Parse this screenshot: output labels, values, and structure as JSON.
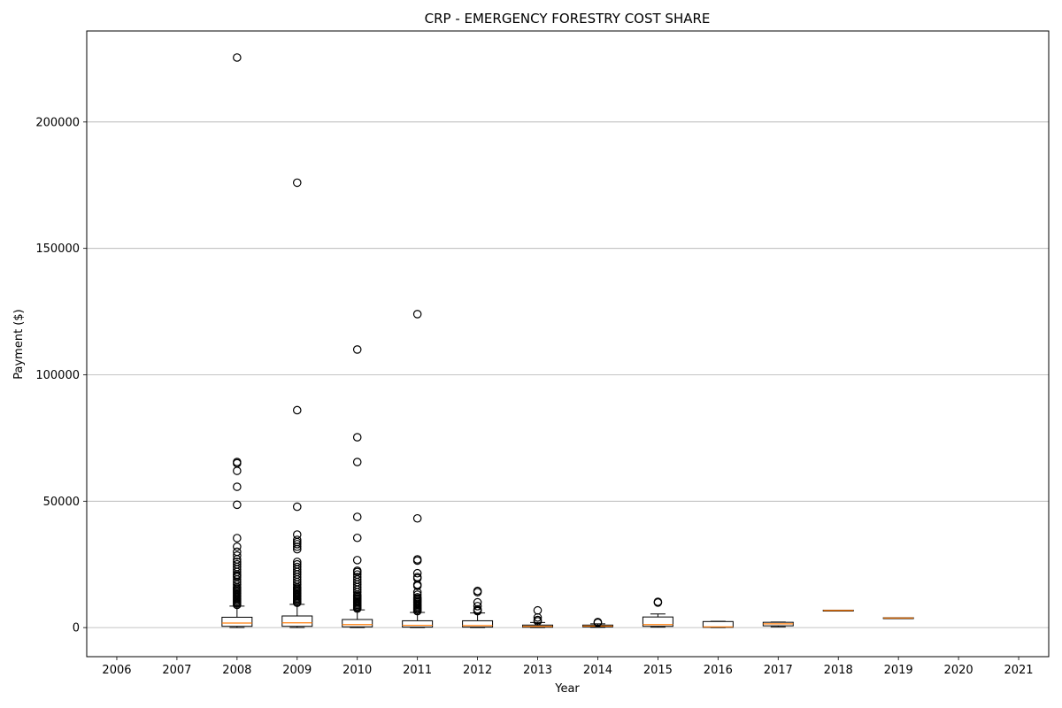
{
  "chart_data": {
    "type": "box",
    "title": "CRP - EMERGENCY FORESTRY COST SHARE",
    "xlabel": "Year",
    "ylabel": "Payment ($)",
    "grid": "y",
    "ylim": [
      -11500,
      236000
    ],
    "yticks": [
      0,
      50000,
      100000,
      150000,
      200000
    ],
    "categories": [
      "2006",
      "2007",
      "2008",
      "2009",
      "2010",
      "2011",
      "2012",
      "2013",
      "2014",
      "2015",
      "2016",
      "2017",
      "2018",
      "2019",
      "2020",
      "2021"
    ],
    "boxes": [
      {
        "year": "2006",
        "empty": true
      },
      {
        "year": "2007",
        "empty": true
      },
      {
        "year": "2008",
        "whislo": 0,
        "q1": 500,
        "med": 1800,
        "q3": 4100,
        "whishi": 8500,
        "fliers": [
          225500,
          65500,
          65000,
          62000,
          55700,
          48600,
          35400,
          32000,
          30000,
          28500,
          27000,
          26000,
          25000,
          24000,
          23000,
          22000,
          21000,
          20500,
          20000,
          19000,
          18000,
          17000,
          16000,
          15500,
          15000,
          14500,
          14000,
          13500,
          13000,
          12500,
          12000,
          11500,
          11000,
          10500,
          10000,
          9500,
          9000
        ]
      },
      {
        "year": "2009",
        "whislo": 0,
        "q1": 500,
        "med": 1900,
        "q3": 4600,
        "whishi": 9200,
        "fliers": [
          176000,
          86000,
          47800,
          36800,
          34700,
          33800,
          33000,
          32000,
          31000,
          26000,
          25000,
          24000,
          23000,
          22000,
          21000,
          20000,
          19000,
          18000,
          17000,
          16000,
          15500,
          15000,
          14500,
          14000,
          13500,
          13000,
          12500,
          12000,
          11500,
          11000,
          10500,
          10000,
          9800
        ]
      },
      {
        "year": "2010",
        "whislo": 0,
        "q1": 300,
        "med": 1200,
        "q3": 3200,
        "whishi": 7000,
        "fliers": [
          110000,
          75300,
          65500,
          43800,
          35500,
          26700,
          22500,
          22000,
          21000,
          20000,
          19000,
          18000,
          17000,
          16000,
          15000,
          14000,
          13000,
          12500,
          12000,
          11500,
          11000,
          10500,
          10000,
          9500,
          9000,
          8500,
          8000,
          7500
        ]
      },
      {
        "year": "2011",
        "whislo": 0,
        "q1": 200,
        "med": 900,
        "q3": 2700,
        "whishi": 6000,
        "fliers": [
          124000,
          43200,
          27000,
          26500,
          21500,
          20000,
          19500,
          17000,
          16500,
          14000,
          13000,
          12000,
          11500,
          11000,
          10500,
          10000,
          9500,
          9000,
          8500,
          8000,
          7500,
          7000,
          6500
        ]
      },
      {
        "year": "2012",
        "whislo": 0,
        "q1": 200,
        "med": 800,
        "q3": 2700,
        "whishi": 5800,
        "fliers": [
          14500,
          14000,
          10000,
          8500,
          7200,
          6800,
          6500
        ]
      },
      {
        "year": "2013",
        "whislo": 0,
        "q1": 150,
        "med": 500,
        "q3": 1000,
        "whishi": 2000,
        "fliers": [
          6800,
          4000,
          3000,
          2500
        ]
      },
      {
        "year": "2014",
        "whislo": 100,
        "q1": 300,
        "med": 600,
        "q3": 1000,
        "whishi": 1500,
        "fliers": [
          2200,
          1900
        ]
      },
      {
        "year": "2015",
        "whislo": 200,
        "q1": 500,
        "med": 1200,
        "q3": 4200,
        "whishi": 5400,
        "fliers": [
          10200,
          9900
        ]
      },
      {
        "year": "2016",
        "whislo": 0,
        "q1": 100,
        "med": 300,
        "q3": 2400,
        "whishi": 2500,
        "fliers": []
      },
      {
        "year": "2017",
        "whislo": 300,
        "q1": 700,
        "med": 1500,
        "q3": 2100,
        "whishi": 2200,
        "fliers": []
      },
      {
        "year": "2018",
        "whislo": 6800,
        "q1": 6800,
        "med": 6800,
        "q3": 6900,
        "whishi": 6900,
        "fliers": []
      },
      {
        "year": "2019",
        "whislo": 3800,
        "q1": 3800,
        "med": 3800,
        "q3": 3900,
        "whishi": 3900,
        "fliers": []
      },
      {
        "year": "2020",
        "empty": true
      },
      {
        "year": "2021",
        "empty": true
      }
    ],
    "colors": {
      "box": "#000000",
      "median": "#ff7f0e",
      "grid": "#b0b0b0",
      "flier": "#000000"
    }
  }
}
